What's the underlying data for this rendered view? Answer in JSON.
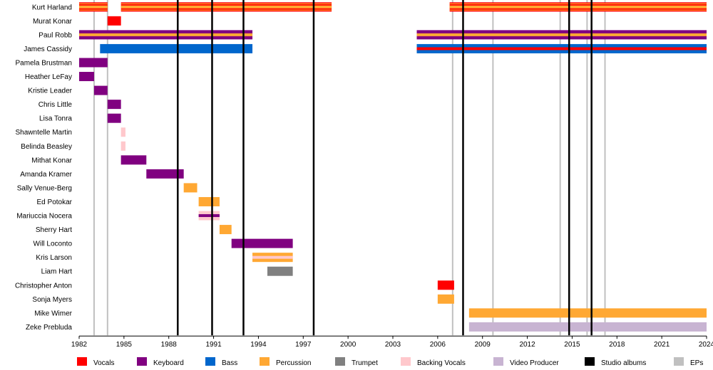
{
  "chart_data": {
    "type": "timeline",
    "title": "",
    "xlabel": "",
    "ylabel": "",
    "xlim": [
      1982,
      2024
    ],
    "x_ticks": [
      "1982",
      "1985",
      "1988",
      "1991",
      "1994",
      "1997",
      "2000",
      "2003",
      "2006",
      "2009",
      "2012",
      "2015",
      "2018",
      "2021",
      "2024"
    ],
    "roles": [
      {
        "key": "vocals",
        "label": "Vocals",
        "color": "#ff0000"
      },
      {
        "key": "keyboard",
        "label": "Keyboard",
        "color": "#800080"
      },
      {
        "key": "bass",
        "label": "Bass",
        "color": "#0066cc"
      },
      {
        "key": "percussion",
        "label": "Percussion",
        "color": "#ffa833"
      },
      {
        "key": "trumpet",
        "label": "Trumpet",
        "color": "#808080"
      },
      {
        "key": "backing",
        "label": "Backing Vocals",
        "color": "#ffc8cc"
      },
      {
        "key": "video",
        "label": "Video Producer",
        "color": "#c8b4d2"
      },
      {
        "key": "studio",
        "label": "Studio albums",
        "color": "#000000"
      },
      {
        "key": "ep",
        "label": "EPs",
        "color": "#c0c0c0"
      }
    ],
    "studio_albums": [
      1988.6,
      1990.9,
      1993.0,
      1997.7,
      2007.7,
      2014.8,
      2016.3
    ],
    "eps": [
      1983.0,
      1983.9,
      2007.0,
      2009.7,
      2014.2,
      2016.0,
      2017.2
    ],
    "members": [
      {
        "name": "Kurt Harland",
        "bars": [
          {
            "start": 1982,
            "end": 1983.9,
            "roles": [
              "vocals",
              "percussion"
            ]
          },
          {
            "start": 1984.8,
            "end": 1998.9,
            "roles": [
              "vocals",
              "percussion"
            ]
          },
          {
            "start": 2006.8,
            "end": 2024,
            "roles": [
              "vocals",
              "percussion"
            ]
          }
        ]
      },
      {
        "name": "Murat Konar",
        "bars": [
          {
            "start": 1983.9,
            "end": 1984.8,
            "roles": [
              "vocals"
            ]
          }
        ]
      },
      {
        "name": "Paul Robb",
        "bars": [
          {
            "start": 1982,
            "end": 1993.6,
            "roles": [
              "keyboard",
              "percussion"
            ]
          },
          {
            "start": 2004.6,
            "end": 2024,
            "roles": [
              "keyboard",
              "percussion"
            ]
          }
        ]
      },
      {
        "name": "James Cassidy",
        "bars": [
          {
            "start": 1983.4,
            "end": 1993.6,
            "roles": [
              "bass"
            ]
          },
          {
            "start": 2004.6,
            "end": 2024,
            "roles": [
              "bass",
              "vocals"
            ]
          }
        ]
      },
      {
        "name": "Pamela Brustman",
        "bars": [
          {
            "start": 1982,
            "end": 1983.9,
            "roles": [
              "keyboard"
            ]
          }
        ]
      },
      {
        "name": "Heather LeFay",
        "bars": [
          {
            "start": 1982,
            "end": 1983.0,
            "roles": [
              "keyboard"
            ]
          }
        ]
      },
      {
        "name": "Kristie Leader",
        "bars": [
          {
            "start": 1983.0,
            "end": 1983.9,
            "roles": [
              "keyboard"
            ]
          }
        ]
      },
      {
        "name": "Chris Little",
        "bars": [
          {
            "start": 1983.9,
            "end": 1984.8,
            "roles": [
              "keyboard"
            ]
          }
        ]
      },
      {
        "name": "Lisa Tonra",
        "bars": [
          {
            "start": 1983.9,
            "end": 1984.8,
            "roles": [
              "keyboard"
            ]
          }
        ]
      },
      {
        "name": "Shawntelle Martin",
        "bars": [
          {
            "start": 1984.8,
            "end": 1985.1,
            "roles": [
              "backing"
            ]
          }
        ]
      },
      {
        "name": "Belinda Beasley",
        "bars": [
          {
            "start": 1984.8,
            "end": 1985.1,
            "roles": [
              "backing"
            ]
          }
        ]
      },
      {
        "name": "Mithat Konar",
        "bars": [
          {
            "start": 1984.8,
            "end": 1986.5,
            "roles": [
              "keyboard"
            ]
          }
        ]
      },
      {
        "name": "Amanda Kramer",
        "bars": [
          {
            "start": 1986.5,
            "end": 1989.0,
            "roles": [
              "keyboard"
            ]
          }
        ]
      },
      {
        "name": "Sally Venue-Berg",
        "bars": [
          {
            "start": 1989.0,
            "end": 1989.9,
            "roles": [
              "percussion"
            ]
          }
        ]
      },
      {
        "name": "Ed Potokar",
        "bars": [
          {
            "start": 1990.0,
            "end": 1991.4,
            "roles": [
              "percussion"
            ]
          }
        ]
      },
      {
        "name": "Mariuccia Nocera",
        "bars": [
          {
            "start": 1990.0,
            "end": 1991.4,
            "roles": [
              "backing",
              "keyboard"
            ]
          }
        ]
      },
      {
        "name": "Sherry Hart",
        "bars": [
          {
            "start": 1991.4,
            "end": 1992.2,
            "roles": [
              "percussion"
            ]
          }
        ]
      },
      {
        "name": "Will Loconto",
        "bars": [
          {
            "start": 1992.2,
            "end": 1996.3,
            "roles": [
              "keyboard"
            ]
          }
        ]
      },
      {
        "name": "Kris Larson",
        "bars": [
          {
            "start": 1993.6,
            "end": 1996.3,
            "roles": [
              "percussion",
              "backing"
            ]
          }
        ]
      },
      {
        "name": "Liam Hart",
        "bars": [
          {
            "start": 1994.6,
            "end": 1996.3,
            "roles": [
              "trumpet"
            ]
          }
        ]
      },
      {
        "name": "Christopher Anton",
        "bars": [
          {
            "start": 2006.0,
            "end": 2007.1,
            "roles": [
              "vocals"
            ]
          }
        ]
      },
      {
        "name": "Sonja Myers",
        "bars": [
          {
            "start": 2006.0,
            "end": 2007.1,
            "roles": [
              "percussion"
            ]
          }
        ]
      },
      {
        "name": "Mike Wimer",
        "bars": [
          {
            "start": 2008.1,
            "end": 2024,
            "roles": [
              "percussion"
            ]
          }
        ]
      },
      {
        "name": "Zeke Prebluda",
        "bars": [
          {
            "start": 2008.1,
            "end": 2024,
            "roles": [
              "video"
            ]
          }
        ]
      }
    ]
  }
}
